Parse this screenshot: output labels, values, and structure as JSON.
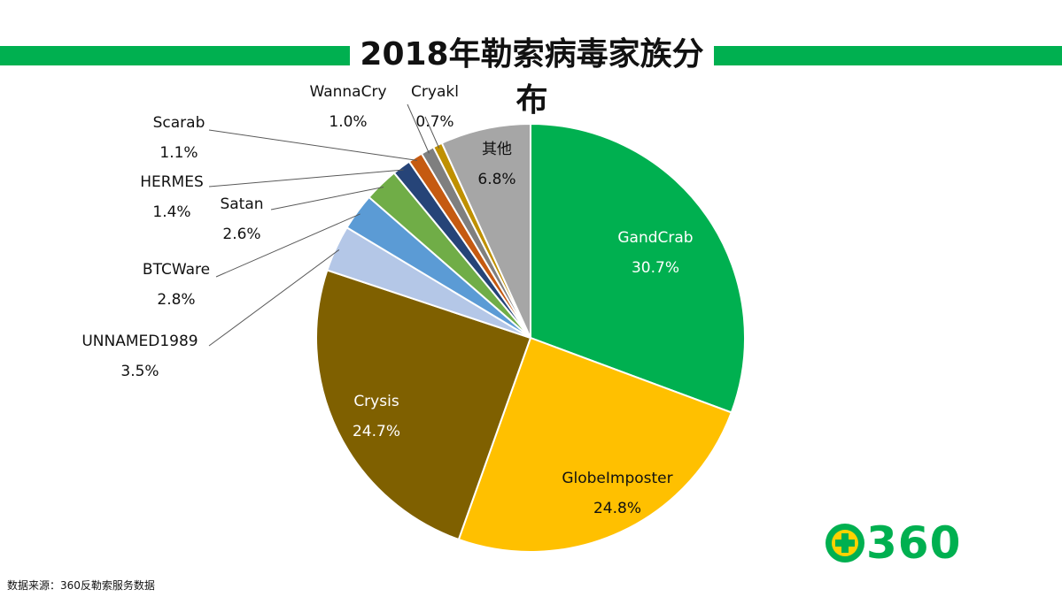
{
  "title": "2018年勒索病毒家族分布",
  "footer": "数据来源：360反勒索服务数据",
  "logo": {
    "text": "360",
    "icon": "plus-circle-icon",
    "color": "#00b050"
  },
  "colors": {
    "accent": "#00b050"
  },
  "chart_data": {
    "type": "pie",
    "title": "2018年勒索病毒家族分布",
    "slices": [
      {
        "label": "GandCrab",
        "value": 30.7,
        "display": "30.7%",
        "color": "#00b050"
      },
      {
        "label": "GlobeImposter",
        "value": 24.8,
        "display": "24.8%",
        "color": "#ffc000"
      },
      {
        "label": "Crysis",
        "value": 24.7,
        "display": "24.7%",
        "color": "#7f6000"
      },
      {
        "label": "UNNAMED1989",
        "value": 3.5,
        "display": "3.5%",
        "color": "#b4c7e7"
      },
      {
        "label": "BTCWare",
        "value": 2.8,
        "display": "2.8%",
        "color": "#5b9bd5"
      },
      {
        "label": "Satan",
        "value": 2.6,
        "display": "2.6%",
        "color": "#70ad47"
      },
      {
        "label": "HERMES",
        "value": 1.4,
        "display": "1.4%",
        "color": "#264478"
      },
      {
        "label": "Scarab",
        "value": 1.1,
        "display": "1.1%",
        "color": "#c55a11"
      },
      {
        "label": "WannaCry",
        "value": 1.0,
        "display": "1.0%",
        "color": "#7f7f7f"
      },
      {
        "label": "Cryakl",
        "value": 0.7,
        "display": "0.7%",
        "color": "#bf9000"
      },
      {
        "label": "其他",
        "value": 6.8,
        "display": "6.8%",
        "color": "#a6a6a6"
      }
    ],
    "start": "12 o'clock",
    "direction": "clockwise",
    "legend": "none"
  }
}
